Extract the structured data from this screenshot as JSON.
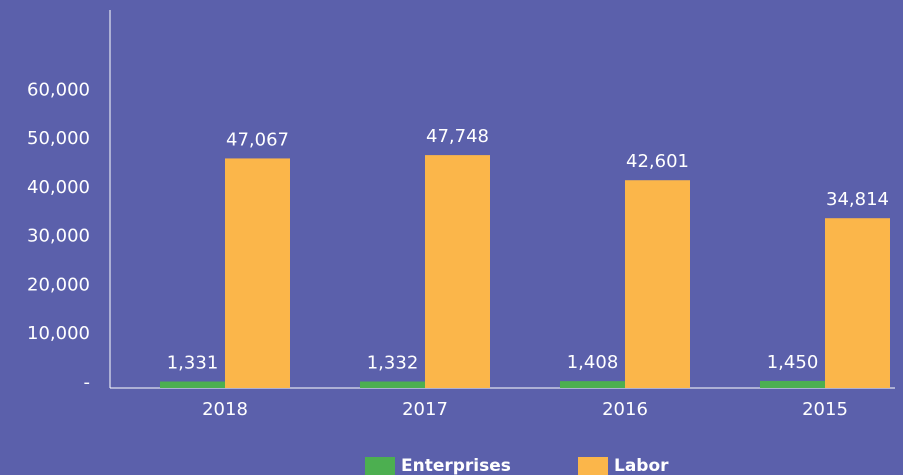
{
  "chart_data": {
    "type": "bar",
    "categories": [
      "2018",
      "2017",
      "2016",
      "2015"
    ],
    "series": [
      {
        "name": "Enterprises",
        "color": "#4caf50",
        "values": [
          1331,
          1332,
          1408,
          1450
        ],
        "value_labels": [
          "1,331",
          "1,332",
          "1,408",
          "1,450"
        ]
      },
      {
        "name": "Labor",
        "color": "#fbb64a",
        "values": [
          47067,
          47748,
          42601,
          34814
        ],
        "value_labels": [
          "47,067",
          "47,748",
          "42,601",
          "34,814"
        ]
      }
    ],
    "ylim": [
      0,
      77500
    ],
    "yticks": [
      {
        "value": 0,
        "label": "-"
      },
      {
        "value": 10000,
        "label": "10,000"
      },
      {
        "value": 20000,
        "label": "20,000"
      },
      {
        "value": 30000,
        "label": "30,000"
      },
      {
        "value": 40000,
        "label": "40,000"
      },
      {
        "value": 50000,
        "label": "50,000"
      },
      {
        "value": 60000,
        "label": "60,000"
      }
    ],
    "grid": false,
    "legend": "bottom"
  }
}
